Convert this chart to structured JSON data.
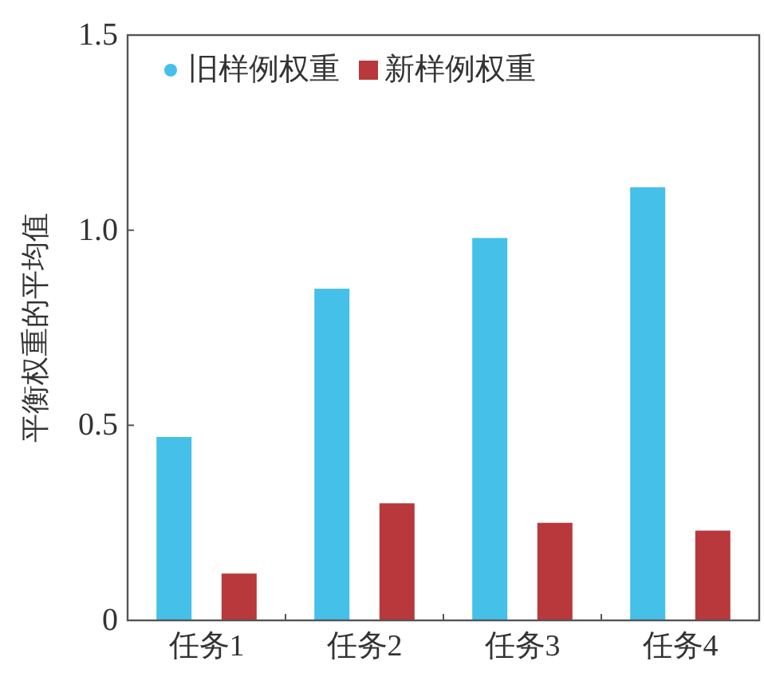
{
  "chart_data": {
    "type": "bar",
    "ylabel": "平衡权重的平均值",
    "categories": [
      "任务1",
      "任务2",
      "任务3",
      "任务4"
    ],
    "series": [
      {
        "name": "旧样例权重",
        "color": "#45c0e8",
        "values": [
          0.47,
          0.85,
          0.98,
          1.11
        ]
      },
      {
        "name": "新样例权重",
        "color": "#b8383c",
        "values": [
          0.12,
          0.3,
          0.25,
          0.23
        ]
      }
    ],
    "ylim": [
      0,
      1.5
    ],
    "yticks": [
      {
        "value": 0,
        "label": "0"
      },
      {
        "value": 0.5,
        "label": "0.5"
      },
      {
        "value": 1,
        "label": "1.0"
      },
      {
        "value": 1.5,
        "label": "1.5"
      }
    ],
    "grid": false,
    "legend": "top left"
  }
}
